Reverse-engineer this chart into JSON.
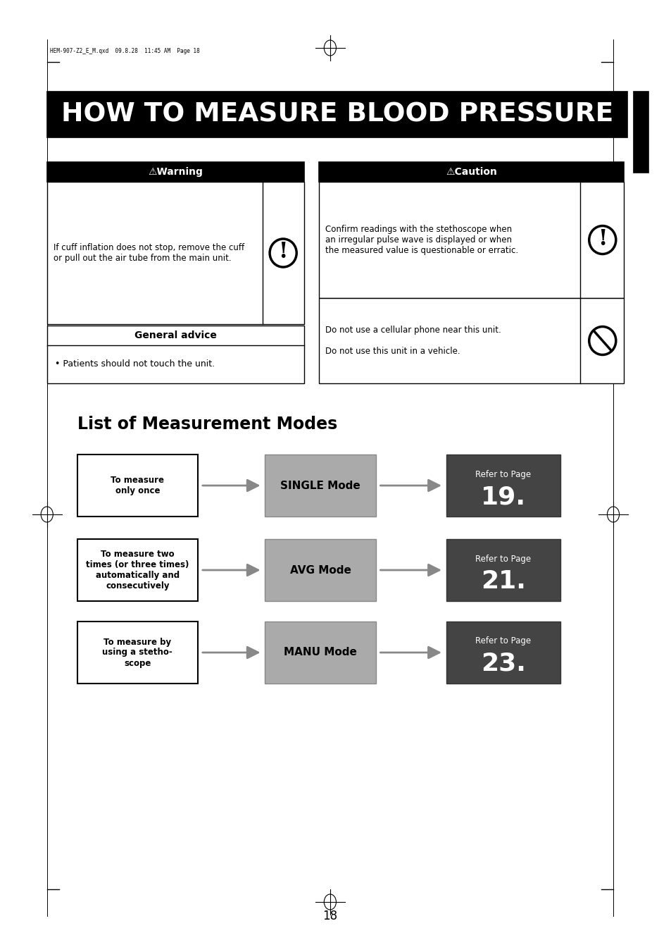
{
  "title": "HOW TO MEASURE BLOOD PRESSURE",
  "title_bg": "#000000",
  "title_color": "#ffffff",
  "page_label": "18",
  "header_meta": "HEM-907-Z2_E_M.qxd  09.8.28  11:45 AM  Page 18",
  "warning_header": "⚠Warning",
  "caution_header": "⚠Caution",
  "warning_text": "If cuff inflation does not stop, remove the cuff\nor pull out the air tube from the main unit.",
  "general_advice_header": "General advice",
  "general_advice_text": "• Patients should not touch the unit.",
  "caution_text1": "Confirm readings with the stethoscope when\nan irregular pulse wave is displayed or when\nthe measured value is questionable or erratic.",
  "caution_text2": "Do not use a cellular phone near this unit.\n\nDo not use this unit in a vehicle.",
  "section_title": "List of Measurement Modes",
  "rows": [
    {
      "left_text": "To measure\nonly once",
      "mid_text": "SINGLE Mode",
      "right_label": "Refer to Page",
      "right_num": "19.",
      "mid_bg": "#aaaaaa",
      "right_bg": "#444444"
    },
    {
      "left_text": "To measure two\ntimes (or three times)\nautomatically and\nconsecutively",
      "mid_text": "AVG Mode",
      "right_label": "Refer to Page",
      "right_num": "21.",
      "mid_bg": "#aaaaaa",
      "right_bg": "#444444"
    },
    {
      "left_text": "To measure by\nusing a stetho-\nscope",
      "mid_text": "MANU Mode",
      "right_label": "Refer to Page",
      "right_num": "23.",
      "mid_bg": "#aaaaaa",
      "right_bg": "#444444"
    }
  ],
  "bg_color": "#ffffff",
  "border_color": "#000000",
  "arrow_color": "#888888"
}
